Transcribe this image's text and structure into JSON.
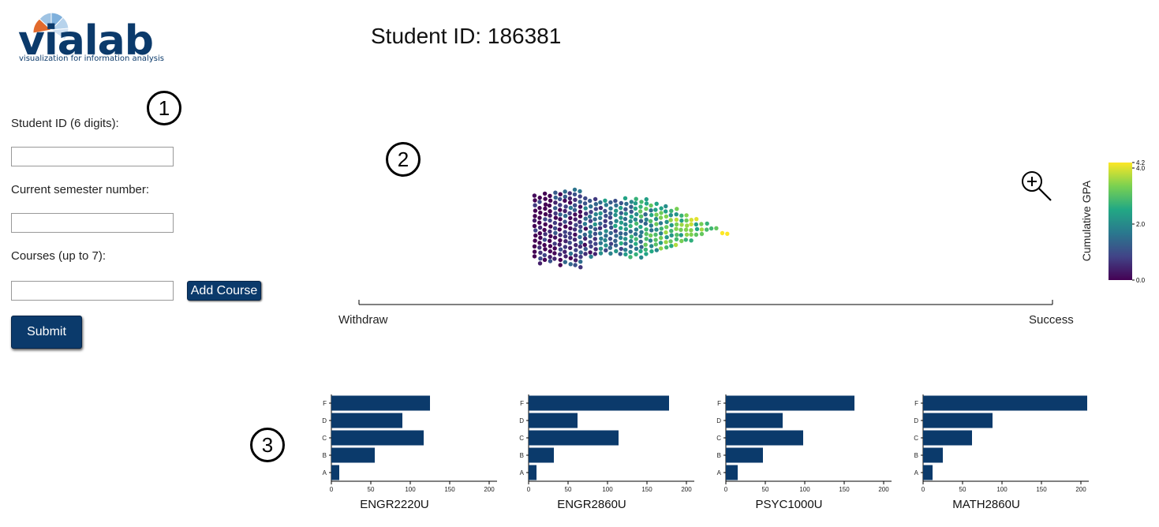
{
  "header": {
    "logo_word": "vialab",
    "logo_tagline": "visualization for information analysis",
    "title_prefix": "Student ID: ",
    "student_id": "186381"
  },
  "form": {
    "student_id_label": "Student ID (6 digits):",
    "student_id_value": "",
    "semester_label": "Current semester number:",
    "semester_value": "",
    "courses_label": "Courses (up to 7):",
    "course_value": "",
    "add_course_label": "Add Course",
    "submit_label": "Submit"
  },
  "markers": [
    "1",
    "2",
    "3"
  ],
  "outcome_axis": {
    "left_label": "Withdraw",
    "right_label": "Success"
  },
  "zoom": {
    "icon": "zoom-in-icon"
  },
  "colorbar": {
    "title": "Cumulative GPA",
    "ticks": [
      "4.2",
      "4.0",
      "2.0",
      "0.0"
    ],
    "min": 0.0,
    "max": 4.2,
    "palette": "viridis"
  },
  "chart_data": [
    {
      "type": "scatter",
      "x": [],
      "y": [],
      "y_unit": "",
      "x_axis_labels": [
        "Withdraw",
        "Success"
      ],
      "color_variable": "Cumulative GPA",
      "color_range": [
        0.0,
        4.2
      ],
      "point_count": "approximately 400",
      "grid": false
    },
    {
      "type": "bar",
      "orientation": "horizontal",
      "categories": [
        "F",
        "D",
        "C",
        "B",
        "A"
      ],
      "values": [
        125,
        90,
        117,
        55,
        10
      ],
      "xlabel": "ENGR2220U",
      "xticks": [
        "0",
        "50",
        "100",
        "150",
        "200"
      ],
      "xlim": [
        0,
        210
      ],
      "color": "#0b3a6b"
    },
    {
      "type": "bar",
      "orientation": "horizontal",
      "categories": [
        "F",
        "D",
        "C",
        "B",
        "A"
      ],
      "values": [
        178,
        62,
        114,
        32,
        10
      ],
      "xlabel": "ENGR2860U",
      "xticks": [
        "0",
        "50",
        "100",
        "150",
        "200"
      ],
      "xlim": [
        0,
        210
      ],
      "color": "#0b3a6b"
    },
    {
      "type": "bar",
      "orientation": "horizontal",
      "categories": [
        "F",
        "D",
        "C",
        "B",
        "A"
      ],
      "values": [
        163,
        72,
        98,
        47,
        15
      ],
      "xlabel": "PSYC1000U",
      "xticks": [
        "0",
        "50",
        "100",
        "150",
        "200"
      ],
      "xlim": [
        0,
        210
      ],
      "color": "#0b3a6b"
    },
    {
      "type": "bar",
      "orientation": "horizontal",
      "categories": [
        "F",
        "D",
        "C",
        "B",
        "A"
      ],
      "values": [
        208,
        88,
        62,
        25,
        12
      ],
      "xlabel": "MATH2860U",
      "xticks": [
        "0",
        "50",
        "100",
        "150",
        "200"
      ],
      "xlim": [
        0,
        210
      ],
      "color": "#0b3a6b"
    }
  ]
}
